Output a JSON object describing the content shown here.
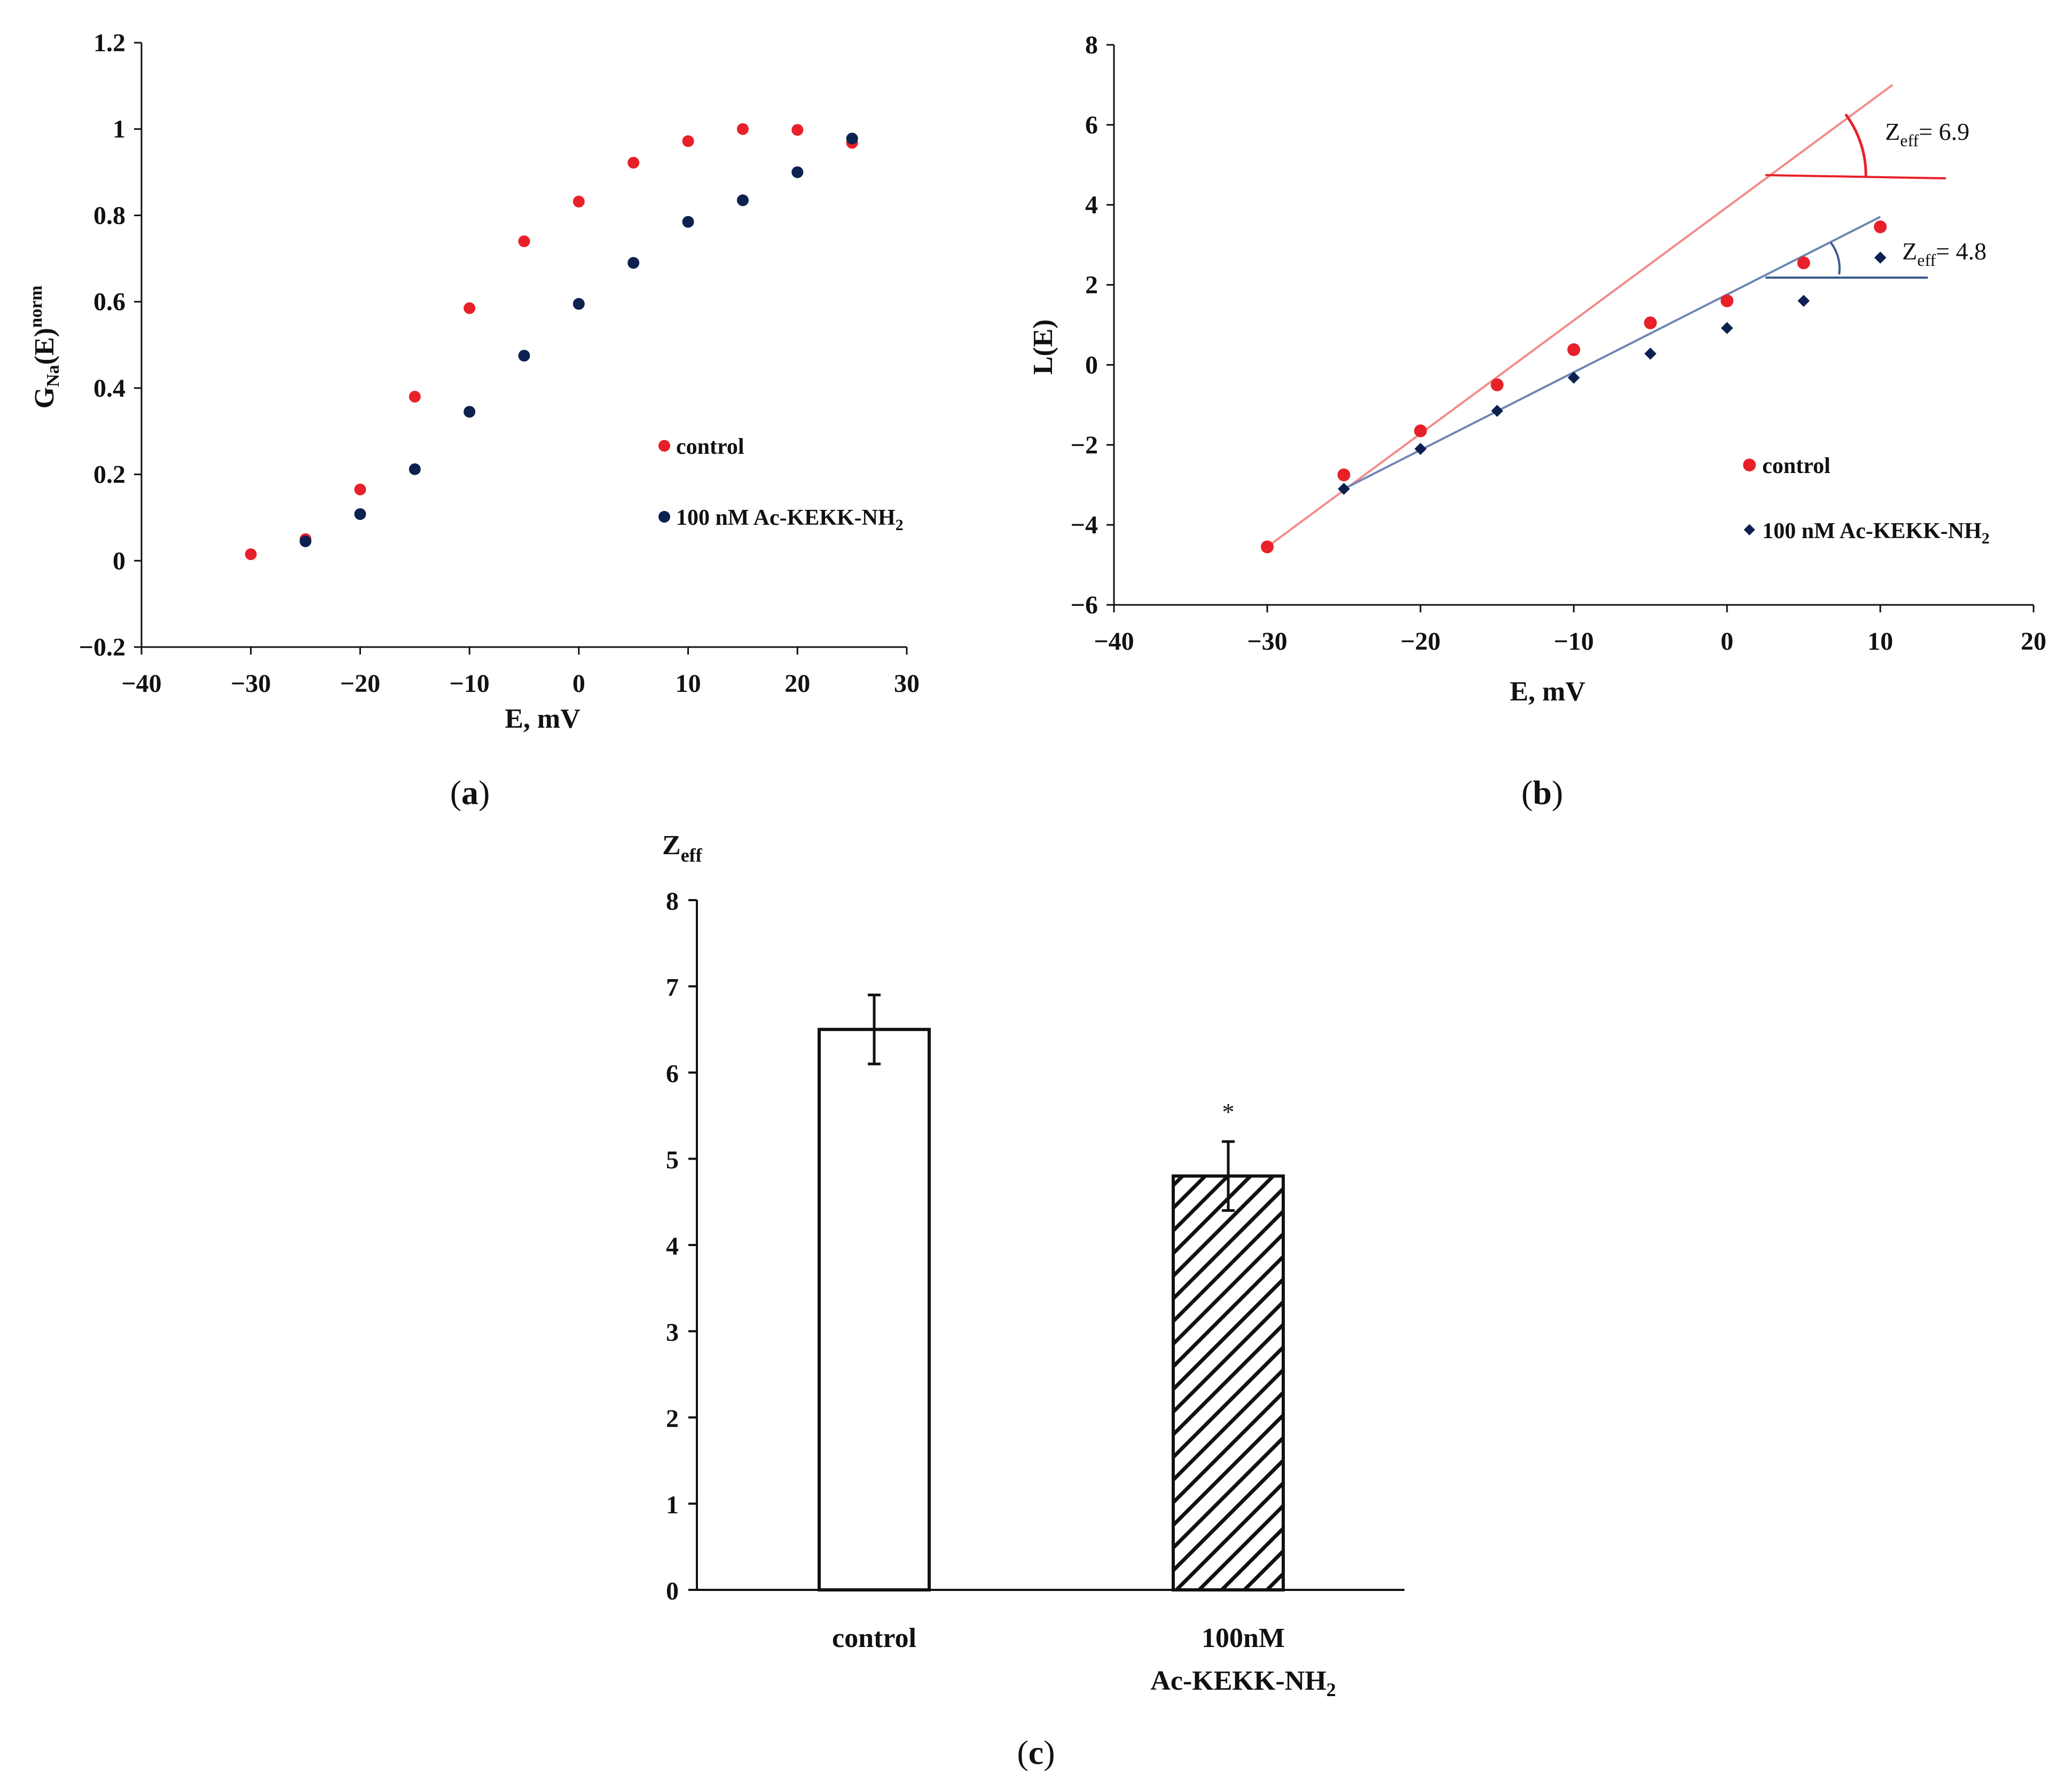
{
  "chart_data": [
    {
      "id": "a",
      "type": "scatter",
      "panel_label": "a",
      "xlabel": "E, mV",
      "ylabel": {
        "base": "G",
        "sub": "Na",
        "mid": "(E)",
        "sup": "norm"
      },
      "xlim": [
        -40,
        30
      ],
      "ylim": [
        -0.2,
        1.2
      ],
      "xticks": [
        -40,
        -30,
        -20,
        -10,
        0,
        10,
        20,
        30
      ],
      "yticks": [
        -0.2,
        0,
        0.2,
        0.4,
        0.6,
        0.8,
        1,
        1.2
      ],
      "xtick_labels": [
        "−40",
        "−30",
        "−20",
        "−10",
        "0",
        "10",
        "20",
        "30"
      ],
      "ytick_labels": [
        "−0.2",
        "0",
        "0.2",
        "0.4",
        "0.6",
        "0.8",
        "1",
        "1.2"
      ],
      "series": [
        {
          "name": "control",
          "color": "#e8202a",
          "marker": "circle",
          "x": [
            -30,
            -25,
            -20,
            -15,
            -10,
            -5,
            0,
            5,
            10,
            15,
            20,
            25
          ],
          "y": [
            0.015,
            0.05,
            0.165,
            0.38,
            0.585,
            0.74,
            0.832,
            0.922,
            0.972,
            1.0,
            0.998,
            0.968
          ]
        },
        {
          "name": "100 nM Ac-KEKK-NH2",
          "name_main": "100 nM Ac-KEKK-NH",
          "name_sub": "2",
          "color": "#0d2150",
          "marker": "circle",
          "x": [
            -25,
            -20,
            -15,
            -10,
            -5,
            0,
            5,
            10,
            15,
            20,
            25
          ],
          "y": [
            0.045,
            0.108,
            0.212,
            0.345,
            0.475,
            0.595,
            0.69,
            0.785,
            0.835,
            0.9,
            0.978
          ]
        }
      ]
    },
    {
      "id": "b",
      "type": "scatter",
      "panel_label": "b",
      "xlabel": "E, mV",
      "ylabel": "L(E)",
      "xlim": [
        -40,
        20
      ],
      "ylim": [
        -6,
        8
      ],
      "xticks": [
        -40,
        -30,
        -20,
        -10,
        0,
        10,
        20
      ],
      "yticks": [
        -6,
        -4,
        -2,
        0,
        2,
        4,
        6,
        8
      ],
      "xtick_labels": [
        "−40",
        "−30",
        "−20",
        "−10",
        "0",
        "10",
        "20"
      ],
      "ytick_labels": [
        "−6",
        "−4",
        "−2",
        "0",
        "2",
        "4",
        "6",
        "8"
      ],
      "series": [
        {
          "name": "control",
          "color": "#e8202a",
          "marker": "circle",
          "x": [
            -30,
            -25,
            -20,
            -15,
            -10,
            -5,
            0,
            5,
            10
          ],
          "y": [
            -4.55,
            -2.75,
            -1.65,
            -0.5,
            0.38,
            1.05,
            1.6,
            2.55,
            3.45
          ]
        },
        {
          "name": "100 nM Ac-KEKK-NH2",
          "name_main": "100 nM Ac-KEKK-NH",
          "name_sub": "2",
          "color": "#0d2150",
          "marker": "diamond",
          "x": [
            -25,
            -20,
            -15,
            -10,
            -5,
            0,
            5,
            10
          ],
          "y": [
            -3.1,
            -2.1,
            -1.15,
            -0.32,
            0.28,
            0.92,
            1.6,
            2.68
          ]
        }
      ],
      "fit_lines": [
        {
          "series": "control",
          "color": "#f28b8b",
          "x": [
            -30,
            10.8
          ],
          "y": [
            -4.55,
            7.0
          ]
        },
        {
          "series": "100 nM Ac-KEKK-NH2",
          "color": "#6e86b3",
          "x": [
            -25,
            10
          ],
          "y": [
            -3.1,
            3.7
          ]
        }
      ],
      "annotations": [
        {
          "base": "Z",
          "sub": "eff",
          "text": "= 6.9",
          "color": "#e8202a"
        },
        {
          "base": "Z",
          "sub": "eff",
          "text": "= 4.8",
          "color": "#3c5a8f"
        }
      ]
    },
    {
      "id": "c",
      "type": "bar",
      "panel_label": "c",
      "ylabel": {
        "base": "Z",
        "sub": "eff"
      },
      "ylim": [
        0,
        8
      ],
      "yticks": [
        0,
        1,
        2,
        3,
        4,
        5,
        6,
        7,
        8
      ],
      "ytick_labels": [
        "0",
        "1",
        "2",
        "3",
        "4",
        "5",
        "6",
        "7",
        "8"
      ],
      "categories": [
        {
          "line1": "control",
          "line2": "",
          "line2_sub": ""
        },
        {
          "line1": "100nM",
          "line2": "Ac-KEKK-NH",
          "line2_sub": "2"
        }
      ],
      "values": [
        6.5,
        4.8
      ],
      "errors": [
        0.4,
        0.4
      ],
      "fills": [
        "solid-white",
        "hatched"
      ],
      "significance": [
        "",
        "*"
      ]
    }
  ]
}
